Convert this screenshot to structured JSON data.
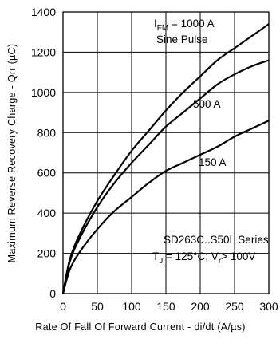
{
  "chart_data": {
    "type": "line",
    "xlabel": "Rate Of Fall Of Forward Current - di/dt (A/µs)",
    "ylabel": "Maximum Reverse Recovery Charge - Qrr (µC)",
    "xlim": [
      0,
      300
    ],
    "ylim": [
      0,
      1400
    ],
    "xticks": [
      "0",
      "50",
      "100",
      "150",
      "200",
      "250",
      "300"
    ],
    "yticks": [
      "0",
      "200",
      "400",
      "600",
      "800",
      "1000",
      "1200",
      "1400"
    ],
    "grid": true,
    "series": [
      {
        "name": "1000 A",
        "x": [
          0,
          10,
          25,
          50,
          75,
          100,
          125,
          150,
          175,
          200,
          225,
          250,
          275,
          300
        ],
        "y": [
          0,
          170,
          300,
          460,
          590,
          710,
          810,
          910,
          1000,
          1080,
          1160,
          1220,
          1280,
          1340
        ]
      },
      {
        "name": "500 A",
        "x": [
          0,
          10,
          25,
          50,
          75,
          100,
          125,
          150,
          175,
          200,
          225,
          250,
          275,
          300
        ],
        "y": [
          0,
          160,
          280,
          430,
          550,
          650,
          740,
          830,
          900,
          970,
          1040,
          1090,
          1130,
          1160
        ]
      },
      {
        "name": "150 A",
        "x": [
          0,
          10,
          25,
          50,
          75,
          100,
          125,
          150,
          175,
          200,
          225,
          250,
          275,
          300
        ],
        "y": [
          0,
          120,
          210,
          320,
          410,
          480,
          550,
          610,
          650,
          690,
          730,
          780,
          820,
          860
        ]
      }
    ]
  },
  "annotations": {
    "line1_prefix": "I",
    "line1_sub": "FM",
    "line1_suffix": " = 1000 A",
    "line2": "Sine Pulse",
    "label_500": "500 A",
    "label_150": "150 A",
    "series_text": "SD263C..S50L Series",
    "cond_t": "T",
    "cond_t_sub": "J",
    "cond_mid": " = 125°C; V",
    "cond_v_sub": "r",
    "cond_end": "> 100V"
  }
}
